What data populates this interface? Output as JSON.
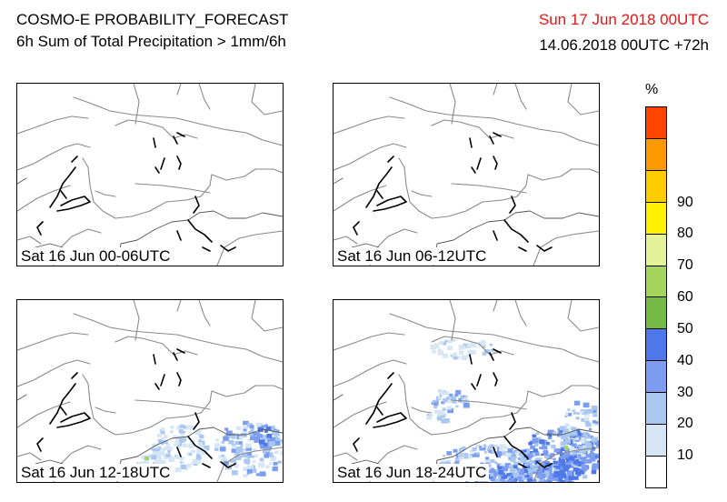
{
  "header": {
    "title": "COSMO-E PROBABILITY_FORECAST",
    "subtitle": "6h Sum of Total Precipitation > 1mm/6h",
    "valid_date": "Sun 17 Jun 2018 00UTC",
    "run": "14.06.2018 00UTC +72h",
    "date_color": "#ee1111"
  },
  "panels": [
    {
      "label": "Sat 16 Jun 00-06UTC",
      "precip": "none"
    },
    {
      "label": "Sat 16 Jun 06-12UTC",
      "precip": "none"
    },
    {
      "label": "Sat 16 Jun 12-18UTC",
      "precip": "southern-alps-light"
    },
    {
      "label": "Sat 16 Jun 18-24UTC",
      "precip": "southern-alps-and-jura"
    }
  ],
  "colorbar": {
    "unit": "%",
    "colors": [
      "#ffffff",
      "#d6e6f4",
      "#aac8ef",
      "#7c9df0",
      "#4e78e8",
      "#77bb47",
      "#a4d65e",
      "#e4f29a",
      "#fff200",
      "#ffcc00",
      "#ff9900",
      "#ff4400"
    ],
    "ticks": [
      "10",
      "20",
      "30",
      "40",
      "50",
      "60",
      "70",
      "80",
      "90"
    ]
  }
}
